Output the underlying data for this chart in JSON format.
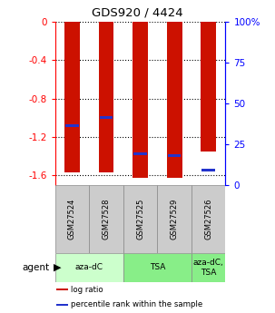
{
  "title": "GDS920 / 4424",
  "samples": [
    "GSM27524",
    "GSM27528",
    "GSM27525",
    "GSM27529",
    "GSM27526"
  ],
  "bar_heights": [
    -1.57,
    -1.57,
    -1.63,
    -1.63,
    -1.35
  ],
  "blue_positions": [
    -1.08,
    -1.0,
    -1.38,
    -1.4,
    -1.55
  ],
  "agent_groups": [
    {
      "label": "aza-dC",
      "cols": [
        0,
        1
      ],
      "color": "#ccffcc"
    },
    {
      "label": "TSA",
      "cols": [
        2,
        3
      ],
      "color": "#88ee88"
    },
    {
      "label": "aza-dC,\nTSA",
      "cols": [
        4
      ],
      "color": "#88ee88"
    }
  ],
  "ylim": [
    -1.7,
    0.0
  ],
  "yticks_left": [
    0.0,
    -0.4,
    -0.8,
    -1.2,
    -1.6
  ],
  "ytick_labels_left": [
    "0",
    "-0.4",
    "-0.8",
    "-1.2",
    "-1.6"
  ],
  "ytick_labels_right": [
    "0",
    "25",
    "50",
    "75",
    "100%"
  ],
  "bar_color": "#cc1100",
  "blue_color": "#2233cc",
  "bar_width": 0.45,
  "legend_items": [
    {
      "color": "#cc1100",
      "label": "log ratio"
    },
    {
      "color": "#2233cc",
      "label": "percentile rank within the sample"
    }
  ]
}
